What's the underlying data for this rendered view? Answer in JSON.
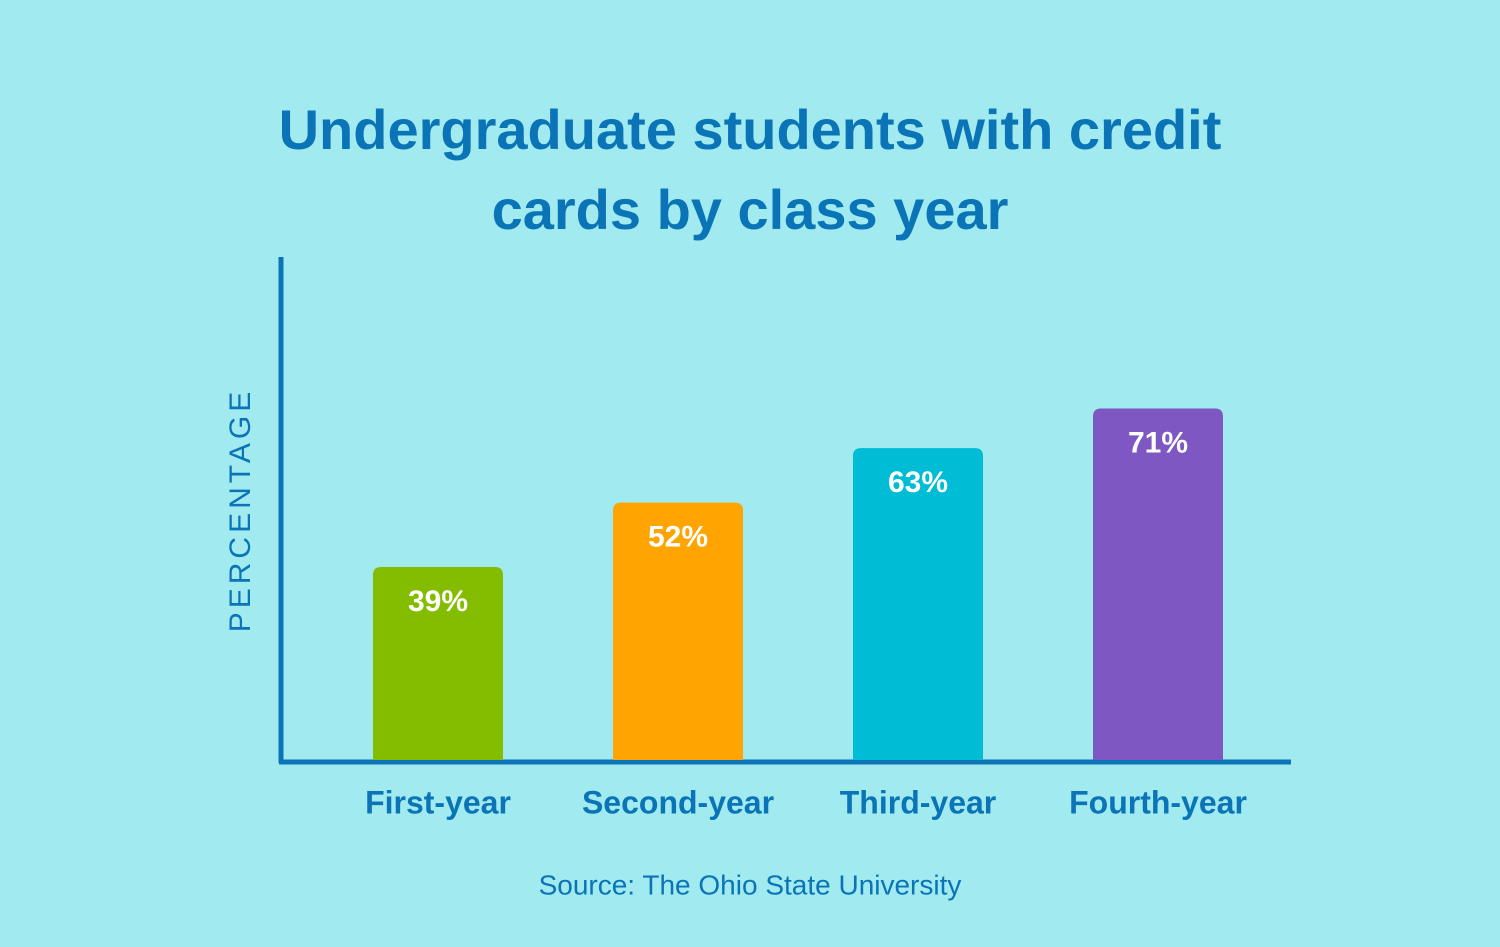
{
  "chart_data": {
    "type": "bar",
    "title": "Undergraduate students with credit cards by class year",
    "y_label": "PERCENTAGE",
    "categories": [
      "First-year",
      "Second-year",
      "Third-year",
      "Fourth-year"
    ],
    "values": [
      39,
      52,
      63,
      71
    ],
    "value_labels": [
      "39%",
      "52%",
      "63%",
      "71%"
    ],
    "colors": [
      "#84bd00",
      "#ffa400",
      "#00bcd4",
      "#7e57c2"
    ],
    "ylim": [
      0,
      100
    ],
    "source": "Source: The Ohio State University"
  }
}
